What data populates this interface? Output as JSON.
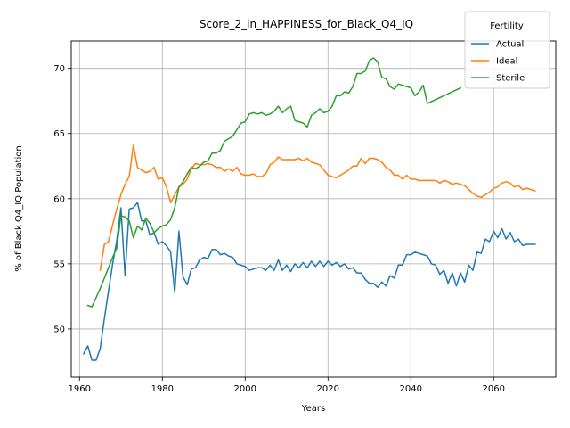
{
  "chart_data": {
    "type": "line",
    "title": "Score_2_in_HAPPINESS_for_Black_Q4_IQ",
    "xlabel": "Years",
    "ylabel": "% of Black Q4_IQ Population",
    "xlim": [
      1958,
      2075
    ],
    "ylim": [
      46.3,
      72.1
    ],
    "xticks": [
      1960,
      1980,
      2000,
      2020,
      2040,
      2060
    ],
    "yticks": [
      50,
      55,
      60,
      65,
      70
    ],
    "grid": true,
    "legend": {
      "title": "Fertility",
      "position": "top-right"
    },
    "series": [
      {
        "name": "Actual",
        "color": "#1f77b4",
        "x": [
          1961,
          1962,
          1963,
          1964,
          1965,
          1966,
          1967,
          1968,
          1969,
          1970,
          1971,
          1972,
          1973,
          1974,
          1975,
          1976,
          1977,
          1978,
          1979,
          1980,
          1981,
          1982,
          1983,
          1984,
          1985,
          1986,
          1987,
          1988,
          1989,
          1990,
          1991,
          1992,
          1993,
          1994,
          1995,
          1996,
          1997,
          1998,
          1999,
          2000,
          2001,
          2002,
          2003,
          2004,
          2005,
          2006,
          2007,
          2008,
          2009,
          2010,
          2011,
          2012,
          2013,
          2014,
          2015,
          2016,
          2017,
          2018,
          2019,
          2020,
          2021,
          2022,
          2023,
          2024,
          2025,
          2026,
          2027,
          2028,
          2029,
          2030,
          2031,
          2032,
          2033,
          2034,
          2035,
          2036,
          2037,
          2038,
          2039,
          2040,
          2041,
          2042,
          2043,
          2044,
          2045,
          2046,
          2047,
          2048,
          2049,
          2050,
          2051,
          2052,
          2053,
          2054,
          2055,
          2056,
          2057,
          2058,
          2059,
          2060,
          2061,
          2062,
          2063,
          2064,
          2065,
          2066,
          2067,
          2068,
          2070
        ],
        "y": [
          48.1,
          48.7,
          47.6,
          47.6,
          48.5,
          50.8,
          52.9,
          55.0,
          56.8,
          59.3,
          54.1,
          59.2,
          59.3,
          59.7,
          58.3,
          58.3,
          57.2,
          57.4,
          56.5,
          56.7,
          56.4,
          55.9,
          52.8,
          57.5,
          54.0,
          53.4,
          54.6,
          54.7,
          55.3,
          55.5,
          55.4,
          56.1,
          56.1,
          55.7,
          55.8,
          55.6,
          55.5,
          55.0,
          54.9,
          54.8,
          54.5,
          54.6,
          54.7,
          54.7,
          54.5,
          54.9,
          54.5,
          55.3,
          54.5,
          54.9,
          54.4,
          55.0,
          54.7,
          55.1,
          54.7,
          55.2,
          54.8,
          55.2,
          54.8,
          55.2,
          54.9,
          55.1,
          54.8,
          55.0,
          54.6,
          54.7,
          54.3,
          54.3,
          53.8,
          53.5,
          53.5,
          53.2,
          53.6,
          53.3,
          54.1,
          53.9,
          54.9,
          54.9,
          55.7,
          55.7,
          55.9,
          55.8,
          55.7,
          55.6,
          55.0,
          54.9,
          54.2,
          54.5,
          53.5,
          54.3,
          53.3,
          54.3,
          53.6,
          54.9,
          54.5,
          55.9,
          55.8,
          56.9,
          56.7,
          57.5,
          57.0,
          57.7,
          56.9,
          57.4,
          56.7,
          56.9,
          56.4,
          56.5,
          56.5
        ]
      },
      {
        "name": "Ideal",
        "color": "#ff7f0e",
        "x": [
          1965,
          1966,
          1967,
          1968,
          1969,
          1970,
          1971,
          1972,
          1973,
          1974,
          1975,
          1976,
          1977,
          1978,
          1979,
          1980,
          1981,
          1982,
          1983,
          1984,
          1985,
          1986,
          1987,
          1988,
          1989,
          1990,
          1991,
          1992,
          1993,
          1994,
          1995,
          1996,
          1997,
          1998,
          1999,
          2000,
          2001,
          2002,
          2003,
          2004,
          2005,
          2006,
          2007,
          2008,
          2009,
          2010,
          2011,
          2012,
          2013,
          2014,
          2015,
          2016,
          2017,
          2018,
          2019,
          2020,
          2021,
          2022,
          2023,
          2024,
          2025,
          2026,
          2027,
          2028,
          2029,
          2030,
          2031,
          2032,
          2033,
          2034,
          2035,
          2036,
          2037,
          2038,
          2039,
          2040,
          2041,
          2042,
          2043,
          2044,
          2045,
          2046,
          2047,
          2048,
          2049,
          2050,
          2051,
          2052,
          2053,
          2054,
          2055,
          2056,
          2057,
          2058,
          2059,
          2060,
          2061,
          2062,
          2063,
          2064,
          2065,
          2066,
          2067,
          2068,
          2070
        ],
        "y": [
          54.5,
          56.5,
          56.7,
          58.0,
          59.2,
          60.3,
          61.1,
          61.7,
          64.1,
          62.4,
          62.2,
          62.0,
          62.1,
          62.4,
          61.5,
          61.6,
          60.9,
          59.7,
          60.3,
          60.9,
          61.1,
          61.5,
          62.3,
          62.7,
          62.6,
          62.6,
          62.7,
          62.6,
          62.4,
          62.4,
          62.1,
          62.3,
          62.1,
          62.4,
          61.9,
          61.8,
          61.8,
          61.9,
          61.7,
          61.7,
          61.9,
          62.6,
          62.8,
          63.2,
          63.0,
          63.0,
          63.0,
          63.0,
          63.1,
          62.9,
          63.1,
          62.8,
          62.7,
          62.6,
          62.2,
          61.8,
          61.7,
          61.6,
          61.8,
          62.0,
          62.2,
          62.5,
          62.5,
          63.1,
          62.7,
          63.1,
          63.1,
          63.0,
          62.8,
          62.4,
          62.2,
          61.8,
          61.8,
          61.5,
          61.8,
          61.5,
          61.5,
          61.4,
          61.4,
          61.4,
          61.4,
          61.4,
          61.2,
          61.4,
          61.3,
          61.1,
          61.2,
          61.1,
          61.0,
          60.7,
          60.4,
          60.2,
          60.1,
          60.3,
          60.5,
          60.8,
          60.9,
          61.2,
          61.3,
          61.2,
          60.9,
          61.0,
          60.7,
          60.8,
          60.6
        ]
      },
      {
        "name": "Sterile",
        "color": "#2ca02c",
        "x": [
          1962,
          1963,
          1964,
          1965,
          1966,
          1967,
          1968,
          1969,
          1970,
          1971,
          1972,
          1973,
          1974,
          1975,
          1976,
          1977,
          1978,
          1979,
          1980,
          1981,
          1982,
          1983,
          1984,
          1985,
          1986,
          1987,
          1988,
          1989,
          1990,
          1991,
          1992,
          1993,
          1994,
          1995,
          1996,
          1997,
          1998,
          1999,
          2000,
          2001,
          2002,
          2003,
          2004,
          2005,
          2006,
          2007,
          2008,
          2009,
          2010,
          2011,
          2012,
          2013,
          2014,
          2015,
          2016,
          2017,
          2018,
          2019,
          2020,
          2021,
          2022,
          2023,
          2024,
          2025,
          2026,
          2027,
          2028,
          2029,
          2030,
          2031,
          2032,
          2033,
          2034,
          2035,
          2036,
          2037,
          2038,
          2039,
          2040,
          2041,
          2042,
          2043,
          2044,
          2052
        ],
        "y": [
          51.8,
          51.7,
          52.4,
          53.1,
          53.9,
          54.7,
          55.5,
          56.2,
          58.7,
          58.6,
          58.3,
          57.0,
          57.9,
          57.6,
          58.5,
          58.1,
          57.4,
          57.7,
          57.9,
          58.0,
          58.4,
          59.3,
          60.9,
          61.3,
          61.9,
          62.4,
          62.3,
          62.5,
          62.8,
          62.9,
          63.5,
          63.5,
          63.7,
          64.4,
          64.6,
          64.8,
          65.3,
          65.8,
          65.9,
          66.5,
          66.6,
          66.5,
          66.6,
          66.4,
          66.5,
          66.7,
          67.1,
          66.6,
          66.9,
          67.1,
          66.0,
          65.9,
          65.8,
          65.5,
          66.4,
          66.6,
          66.9,
          66.6,
          66.7,
          67.1,
          67.9,
          67.9,
          68.2,
          68.1,
          68.6,
          69.6,
          69.6,
          69.8,
          70.6,
          70.8,
          70.5,
          69.3,
          69.2,
          68.6,
          68.4,
          68.8,
          68.7,
          68.6,
          68.5,
          67.9,
          68.2,
          68.7,
          67.3,
          68.5
        ]
      }
    ]
  }
}
